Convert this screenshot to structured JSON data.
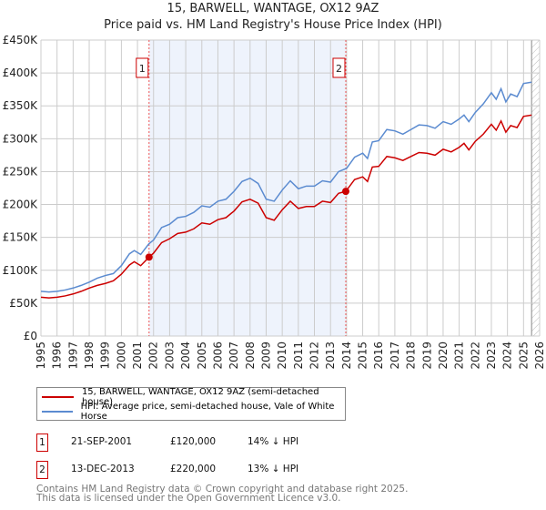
{
  "chart_data": {
    "type": "line",
    "title": "15, BARWELL, WANTAGE, OX12 9AZ",
    "subtitle": "Price paid vs. HM Land Registry's House Price Index (HPI)",
    "xlim": [
      1995,
      2026
    ],
    "ylim": [
      0,
      450000
    ],
    "yticks": [
      0,
      50000,
      100000,
      150000,
      200000,
      250000,
      300000,
      350000,
      400000,
      450000
    ],
    "ytick_labels": [
      "£0",
      "£50K",
      "£100K",
      "£150K",
      "£200K",
      "£250K",
      "£300K",
      "£350K",
      "£400K",
      "£450K"
    ],
    "xticks": [
      "1995",
      "1996",
      "1997",
      "1998",
      "1999",
      "2000",
      "2001",
      "2002",
      "2003",
      "2004",
      "2005",
      "2006",
      "2007",
      "2008",
      "2009",
      "2010",
      "2011",
      "2012",
      "2013",
      "2014",
      "2015",
      "2016",
      "2017",
      "2018",
      "2019",
      "2020",
      "2021",
      "2022",
      "2023",
      "2024",
      "2025",
      "2026"
    ],
    "grid": true,
    "series": [
      {
        "name": "HPI: Average price, semi-detached house, Vale of White Horse",
        "color": "#5b8bd0",
        "x": [
          1995,
          1995.5,
          1996,
          1996.5,
          1997,
          1997.5,
          1998,
          1998.5,
          1999,
          1999.5,
          2000,
          2000.5,
          2000.8,
          2001.2,
          2001.7,
          2002,
          2002.5,
          2003,
          2003.5,
          2004,
          2004.5,
          2005,
          2005.5,
          2006,
          2006.5,
          2007,
          2007.5,
          2008,
          2008.5,
          2009,
          2009.5,
          2010,
          2010.5,
          2011,
          2011.5,
          2012,
          2012.5,
          2013,
          2013.5,
          2014,
          2014.5,
          2015,
          2015.3,
          2015.6,
          2016,
          2016.5,
          2017,
          2017.5,
          2018,
          2018.5,
          2019,
          2019.5,
          2020,
          2020.5,
          2021,
          2021.3,
          2021.6,
          2022,
          2022.5,
          2023,
          2023.3,
          2023.6,
          2023.9,
          2024.2,
          2024.6,
          2025,
          2025.5
        ],
        "y": [
          68000,
          67000,
          68000,
          70000,
          73000,
          77000,
          82000,
          88000,
          92000,
          95000,
          107000,
          125000,
          130000,
          124000,
          140000,
          146000,
          165000,
          170000,
          180000,
          182000,
          188000,
          198000,
          196000,
          205000,
          208000,
          220000,
          235000,
          240000,
          232000,
          208000,
          205000,
          222000,
          236000,
          224000,
          228000,
          228000,
          236000,
          234000,
          250000,
          255000,
          272000,
          278000,
          270000,
          295000,
          297000,
          314000,
          312000,
          307000,
          314000,
          321000,
          320000,
          316000,
          326000,
          322000,
          330000,
          336000,
          326000,
          340000,
          353000,
          370000,
          360000,
          376000,
          356000,
          368000,
          364000,
          384000,
          386000
        ]
      },
      {
        "name": "15, BARWELL, WANTAGE, OX12 9AZ (semi-detached house)",
        "color": "#cc0000",
        "x": [
          1995,
          1995.5,
          1996,
          1996.5,
          1997,
          1997.5,
          1998,
          1998.5,
          1999,
          1999.5,
          2000,
          2000.5,
          2000.8,
          2001.2,
          2001.72,
          2002,
          2002.5,
          2003,
          2003.5,
          2004,
          2004.5,
          2005,
          2005.5,
          2006,
          2006.5,
          2007,
          2007.5,
          2008,
          2008.5,
          2009,
          2009.5,
          2010,
          2010.5,
          2011,
          2011.5,
          2012,
          2012.5,
          2013,
          2013.5,
          2013.95,
          2014.5,
          2015,
          2015.3,
          2015.6,
          2016,
          2016.5,
          2017,
          2017.5,
          2018,
          2018.5,
          2019,
          2019.5,
          2020,
          2020.5,
          2021,
          2021.3,
          2021.6,
          2022,
          2022.5,
          2023,
          2023.3,
          2023.6,
          2023.9,
          2024.2,
          2024.6,
          2025,
          2025.5
        ],
        "y": [
          59000,
          58000,
          59000,
          61000,
          64000,
          68000,
          73000,
          77000,
          80000,
          84000,
          94000,
          108000,
          113000,
          107000,
          120000,
          126000,
          142000,
          148000,
          156000,
          158000,
          163000,
          172000,
          170000,
          177000,
          180000,
          190000,
          204000,
          208000,
          202000,
          180000,
          176000,
          192000,
          205000,
          194000,
          197000,
          197000,
          205000,
          203000,
          217000,
          220000,
          238000,
          242000,
          235000,
          257000,
          258000,
          273000,
          271000,
          267000,
          273000,
          279000,
          278000,
          275000,
          284000,
          280000,
          287000,
          293000,
          283000,
          296000,
          307000,
          322000,
          313000,
          327000,
          310000,
          320000,
          317000,
          334000,
          336000
        ]
      }
    ],
    "sales": [
      {
        "label": "1",
        "x": 2001.72,
        "y": 120000
      },
      {
        "label": "2",
        "x": 2013.95,
        "y": 220000
      }
    ],
    "shaded_range": [
      2001.72,
      2013.95
    ],
    "forecast_start": 2025.5
  },
  "legend": {
    "property": "15, BARWELL, WANTAGE, OX12 9AZ (semi-detached house)",
    "hpi": "HPI: Average price, semi-detached house, Vale of White Horse"
  },
  "sales_table": [
    {
      "num": "1",
      "date": "21-SEP-2001",
      "price": "£120,000",
      "hpi": "14% ↓ HPI"
    },
    {
      "num": "2",
      "date": "13-DEC-2013",
      "price": "£220,000",
      "hpi": "13% ↓ HPI"
    }
  ],
  "footer": {
    "line1": "Contains HM Land Registry data © Crown copyright and database right 2025.",
    "line2": "This data is licensed under the Open Government Licence v3.0."
  }
}
